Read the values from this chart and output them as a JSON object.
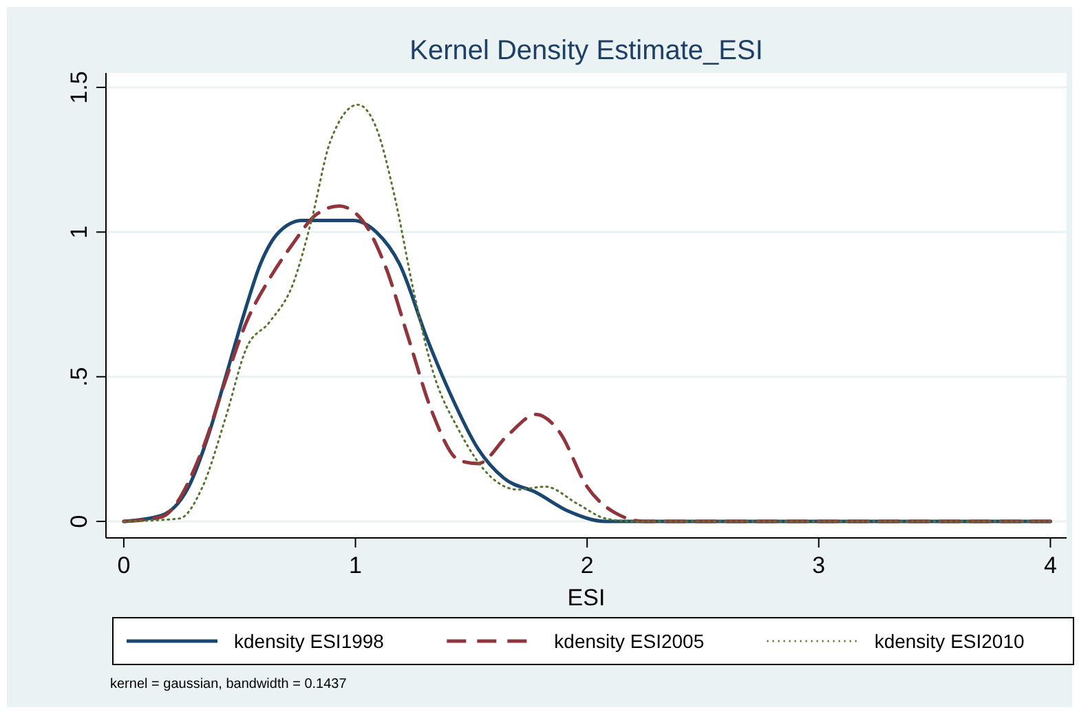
{
  "chart_data": {
    "type": "line",
    "title": "Kernel Density Estimate_ESI",
    "xlabel": "ESI",
    "xlim": [
      -0.077,
      4.07
    ],
    "ylim": [
      -0.057,
      1.55
    ],
    "xticks": [
      0,
      1,
      2,
      3,
      4
    ],
    "yticks": [
      0,
      {
        "value": 0.5,
        "label": ".5"
      },
      1,
      1.5
    ],
    "grid": "y",
    "legend": "bottom",
    "annotations": [
      "kernel = gaussian, bandwidth = 0.1437"
    ],
    "series": [
      {
        "name": "kdensity ESI1998",
        "color": "#1a476f",
        "line_style": "solid",
        "x": [
          0,
          0.16,
          0.28,
          0.37,
          0.44,
          0.52,
          0.59,
          0.67,
          0.77,
          0.99,
          1.09,
          1.19,
          1.31,
          1.41,
          1.53,
          1.64,
          1.78,
          1.92,
          2.08,
          3,
          4
        ],
        "values": [
          0,
          0.02,
          0.12,
          0.31,
          0.5,
          0.72,
          0.89,
          1.0,
          1.04,
          1.04,
          1.0,
          0.89,
          0.63,
          0.44,
          0.25,
          0.15,
          0.1,
          0.035,
          0,
          0,
          0
        ]
      },
      {
        "name": "kdensity ESI2005",
        "color": "#90353b",
        "line_style": "dashed",
        "x": [
          0,
          0.16,
          0.34,
          0.44,
          0.53,
          0.63,
          0.73,
          0.83,
          0.93,
          1.03,
          1.13,
          1.23,
          1.33,
          1.45,
          1.53,
          1.66,
          1.78,
          1.88,
          2.0,
          2.12,
          2.25,
          3,
          4
        ],
        "values": [
          0,
          0.015,
          0.25,
          0.49,
          0.69,
          0.84,
          0.96,
          1.06,
          1.09,
          1.04,
          0.88,
          0.63,
          0.38,
          0.21,
          0.2,
          0.3,
          0.37,
          0.31,
          0.12,
          0.03,
          0,
          0,
          0
        ]
      },
      {
        "name": "kdensity ESI2010",
        "color": "#55752f",
        "line_style": "dotted",
        "x": [
          0,
          0.24,
          0.34,
          0.44,
          0.53,
          0.63,
          0.73,
          0.81,
          0.89,
          1.01,
          1.09,
          1.17,
          1.25,
          1.33,
          1.45,
          1.59,
          1.7,
          1.82,
          1.96,
          2.08,
          2.2,
          3,
          4
        ],
        "values": [
          0,
          0.01,
          0.12,
          0.36,
          0.6,
          0.69,
          0.82,
          1.04,
          1.31,
          1.44,
          1.36,
          1.12,
          0.8,
          0.53,
          0.31,
          0.15,
          0.11,
          0.12,
          0.06,
          0.01,
          0,
          0,
          0
        ]
      }
    ]
  }
}
